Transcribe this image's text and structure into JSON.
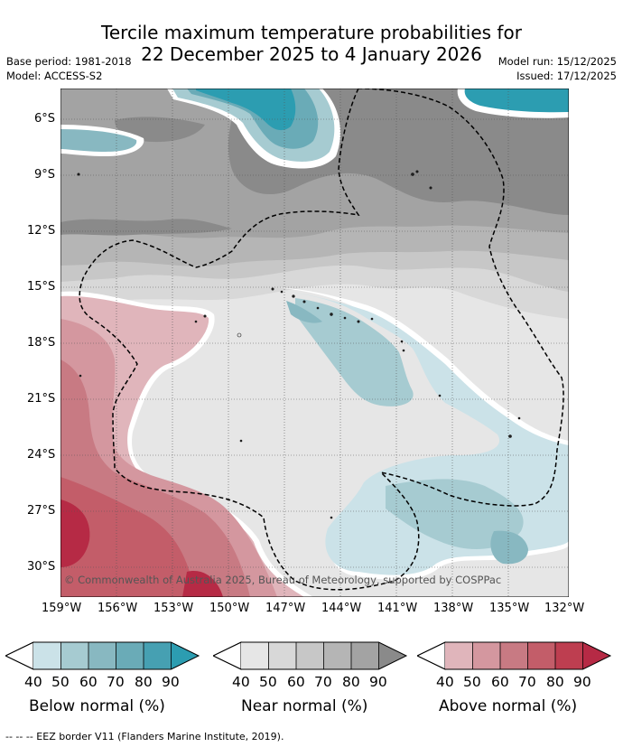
{
  "title": {
    "line1": "Tercile maximum temperature probabilities for",
    "line2": "22 December 2025 to 4 January 2026"
  },
  "meta": {
    "base_period": "Base period: 1981-2018",
    "model": "Model: ACCESS-S2",
    "model_run": "Model run: 15/12/2025",
    "issued": "Issued: 17/12/2025"
  },
  "map": {
    "lat_labels": [
      "6°S",
      "9°S",
      "12°S",
      "15°S",
      "18°S",
      "21°S",
      "24°S",
      "27°S",
      "30°S"
    ],
    "lon_labels": [
      "159°W",
      "156°W",
      "153°W",
      "150°W",
      "147°W",
      "144°W",
      "141°W",
      "138°W",
      "135°W",
      "132°W"
    ],
    "copyright": "© Commonwealth of Australia 2025, Bureau of Meteorology, supported by COSPPac"
  },
  "colorbars": [
    {
      "label": "Below normal (%)",
      "ticks": [
        "40",
        "50",
        "60",
        "70",
        "80",
        "90"
      ],
      "colors": [
        "#cbe2e8",
        "#a6cbd1",
        "#88b8c1",
        "#6aabb7",
        "#46a0b2",
        "#2c9db1"
      ]
    },
    {
      "label": "Near normal (%)",
      "ticks": [
        "40",
        "50",
        "60",
        "70",
        "80",
        "90"
      ],
      "colors": [
        "#e6e6e6",
        "#d8d8d8",
        "#c7c7c7",
        "#b5b5b5",
        "#a3a3a3",
        "#8a8a8a"
      ]
    },
    {
      "label": "Above normal (%)",
      "ticks": [
        "40",
        "50",
        "60",
        "70",
        "80",
        "90"
      ],
      "colors": [
        "#e0b5bb",
        "#d4979f",
        "#c87a83",
        "#c35d69",
        "#be3e50",
        "#b62a45"
      ]
    }
  ],
  "footer": "--  --  -- EEZ border V11 (Flanders Marine Institute, 2019)."
}
